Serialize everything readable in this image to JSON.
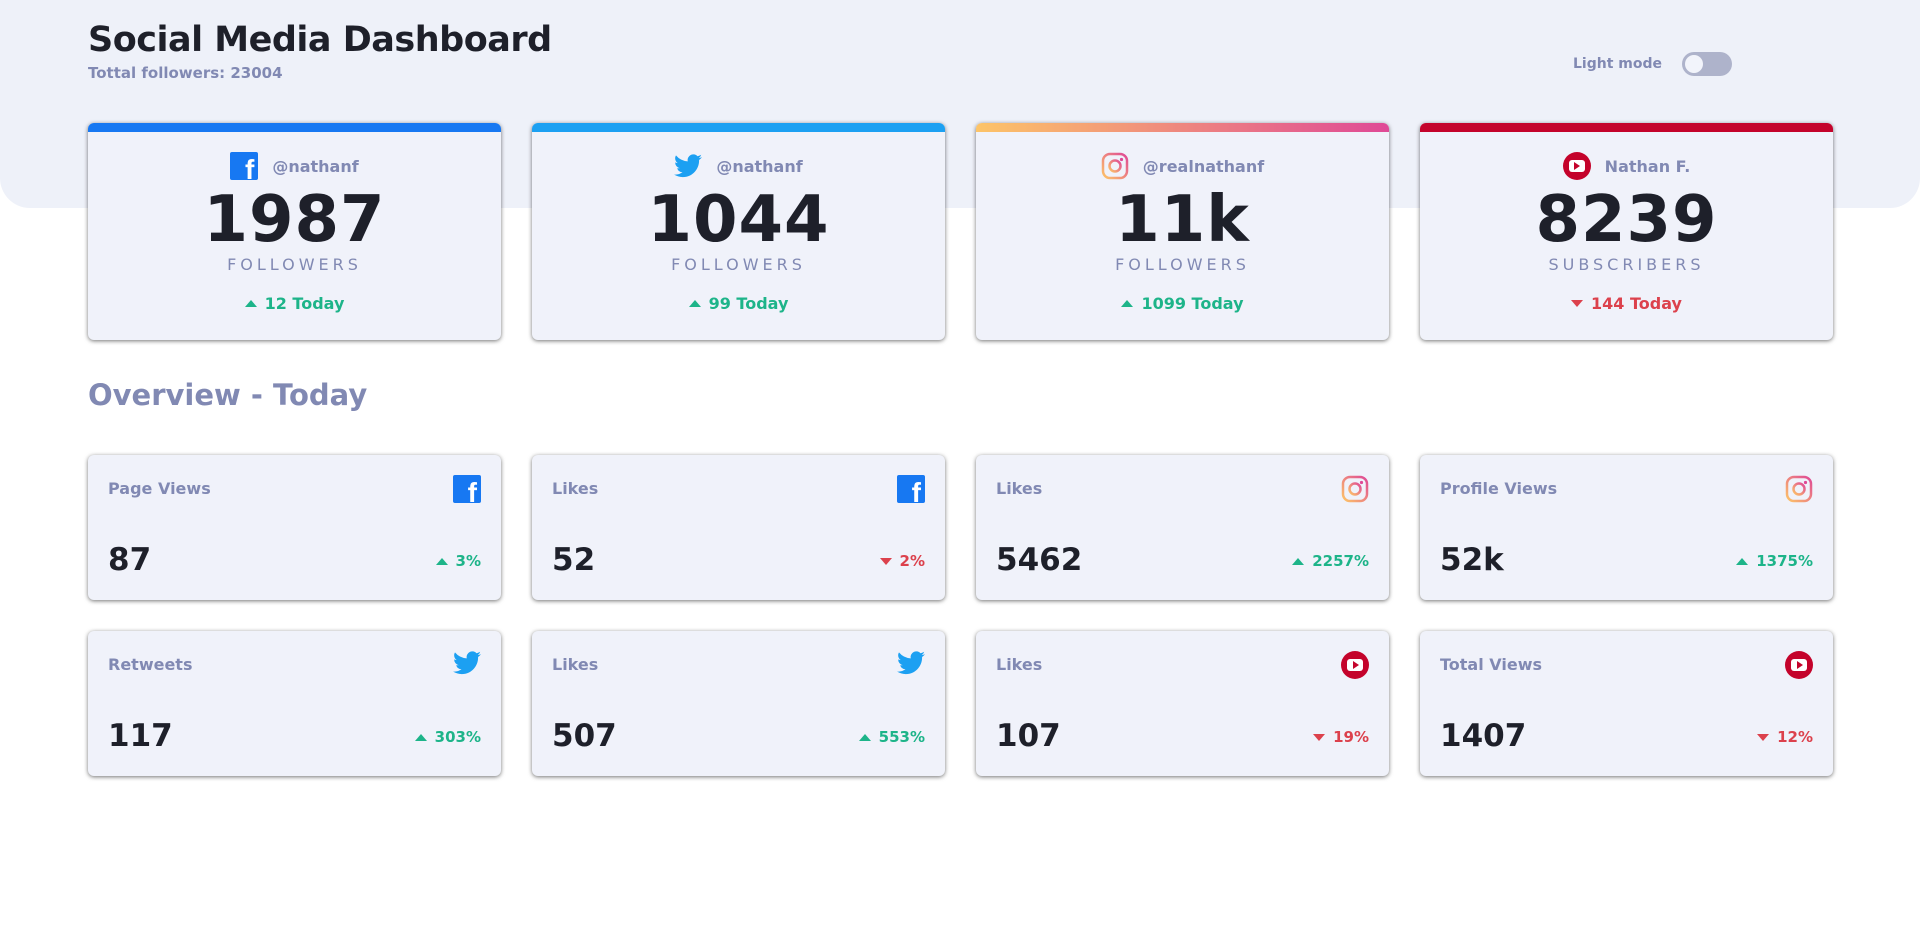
{
  "header": {
    "title": "Social Media Dashboard",
    "subtitle": "Tottal followers: 23004",
    "mode_label": "Light mode"
  },
  "colors": {
    "facebook": "#1778f2",
    "twitter": "#1ca0f2",
    "instagram_start": "#fdc468",
    "instagram_end": "#df4996",
    "youtube": "#c4032b",
    "up": "#1db489",
    "down": "#dc414c"
  },
  "cards": [
    {
      "network": "facebook",
      "icon": "facebook-icon",
      "handle": "@nathanf",
      "count": "1987",
      "unit": "FOLLOWERS",
      "today": "12 Today",
      "trend": "up"
    },
    {
      "network": "twitter",
      "icon": "twitter-icon",
      "handle": "@nathanf",
      "count": "1044",
      "unit": "FOLLOWERS",
      "today": "99 Today",
      "trend": "up"
    },
    {
      "network": "instagram",
      "icon": "instagram-icon",
      "handle": "@realnathanf",
      "count": "11k",
      "unit": "FOLLOWERS",
      "today": "1099 Today",
      "trend": "up"
    },
    {
      "network": "youtube",
      "icon": "youtube-icon",
      "handle": "Nathan F.",
      "count": "8239",
      "unit": "SUBSCRIBERS",
      "today": "144 Today",
      "trend": "down"
    }
  ],
  "overview": {
    "title": "Overview - Today",
    "tiles": [
      {
        "label": "Page Views",
        "icon": "facebook-icon",
        "value": "87",
        "change": "3%",
        "trend": "up"
      },
      {
        "label": "Likes",
        "icon": "facebook-icon",
        "value": "52",
        "change": "2%",
        "trend": "down"
      },
      {
        "label": "Likes",
        "icon": "instagram-icon",
        "value": "5462",
        "change": "2257%",
        "trend": "up"
      },
      {
        "label": "Profile Views",
        "icon": "instagram-icon",
        "value": "52k",
        "change": "1375%",
        "trend": "up"
      },
      {
        "label": "Retweets",
        "icon": "twitter-icon",
        "value": "117",
        "change": "303%",
        "trend": "up"
      },
      {
        "label": "Likes",
        "icon": "twitter-icon",
        "value": "507",
        "change": "553%",
        "trend": "up"
      },
      {
        "label": "Likes",
        "icon": "youtube-icon",
        "value": "107",
        "change": "19%",
        "trend": "down"
      },
      {
        "label": "Total Views",
        "icon": "youtube-icon",
        "value": "1407",
        "change": "12%",
        "trend": "down"
      }
    ]
  }
}
